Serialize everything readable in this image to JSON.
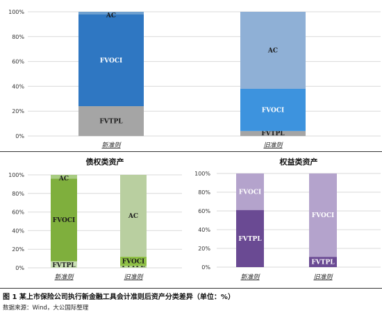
{
  "figure": {
    "caption": "图 1   某上市保险公司执行新金融工具会计准则后资产分类差异（单位：%）",
    "source": "数据来源：Wind，大公国际整理"
  },
  "chart_data": [
    {
      "type": "bar",
      "stacked": true,
      "title": "",
      "categories": [
        "新准则",
        "旧准则"
      ],
      "ylim": [
        0,
        100
      ],
      "yticks": [
        "0%",
        "20%",
        "40%",
        "60%",
        "80%",
        "100%"
      ],
      "series": [
        {
          "name": "FVTPL",
          "values": [
            24,
            4
          ],
          "colors": [
            "#a5a5a5",
            "#a5a5a5"
          ],
          "label_colors": [
            "#1a1a1a",
            "#1a1a1a"
          ]
        },
        {
          "name": "FVOCI",
          "values": [
            74,
            34
          ],
          "colors": [
            "#2f77c2",
            "#3d93de"
          ],
          "label_colors": [
            "#ffffff",
            "#ffffff"
          ]
        },
        {
          "name": "AC",
          "values": [
            2,
            62
          ],
          "colors": [
            "#6fa0cf",
            "#8fb0d6"
          ],
          "label_colors": [
            "#1a1a1a",
            "#1a1a1a"
          ]
        }
      ]
    },
    {
      "type": "bar",
      "stacked": true,
      "title": "债权类资产",
      "categories": [
        "新准则",
        "旧准则"
      ],
      "ylim": [
        0,
        100
      ],
      "yticks": [
        "0%",
        "20%",
        "40%",
        "60%",
        "80%",
        "100%"
      ],
      "series": [
        {
          "name": "FVTPL",
          "values": [
            7,
            2
          ],
          "colors": [
            "#c9dfb4",
            "#b9d79a"
          ],
          "label_colors": [
            "#1a1a1a",
            "#1a1a1a"
          ]
        },
        {
          "name": "FVOCI",
          "values": [
            89,
            10
          ],
          "colors": [
            "#7faf3d",
            "#8fc046"
          ],
          "label_colors": [
            "#1a1a1a",
            "#1a1a1a"
          ]
        },
        {
          "name": "AC",
          "values": [
            4,
            88
          ],
          "colors": [
            "#a8cc82",
            "#b9cfa0"
          ],
          "label_colors": [
            "#1a1a1a",
            "#1a1a1a"
          ]
        }
      ]
    },
    {
      "type": "bar",
      "stacked": true,
      "title": "权益类资产",
      "categories": [
        "新准则",
        "旧准则"
      ],
      "ylim": [
        0,
        100
      ],
      "yticks": [
        "0%",
        "20%",
        "40%",
        "60%",
        "80%",
        "100%"
      ],
      "series": [
        {
          "name": "FVTPL",
          "values": [
            61,
            11
          ],
          "colors": [
            "#6a4a93",
            "#6a4a93"
          ],
          "label_colors": [
            "#ffffff",
            "#ffffff"
          ]
        },
        {
          "name": "FVOCI",
          "values": [
            39,
            89
          ],
          "colors": [
            "#b4a3cc",
            "#b4a3cc"
          ],
          "label_colors": [
            "#ffffff",
            "#ffffff"
          ]
        }
      ]
    }
  ]
}
